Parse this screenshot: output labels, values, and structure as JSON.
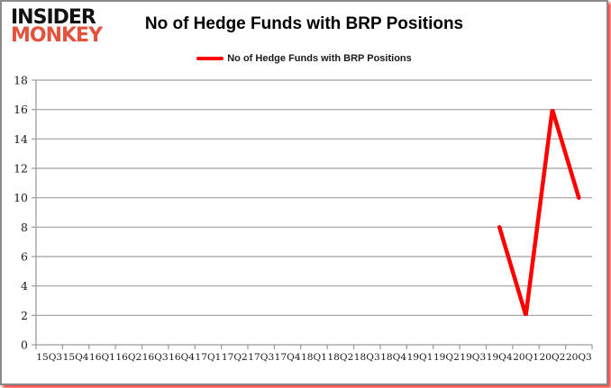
{
  "logo": {
    "line1": "INSIDER",
    "line2": "MONKEY",
    "accent_color": "#e2523c"
  },
  "header": {
    "title": "No of Hedge Funds with BRP Positions"
  },
  "legend": {
    "label": "No of Hedge Funds with BRP Positions",
    "swatch_color": "#ff0000"
  },
  "colors": {
    "line": "#ff0000",
    "grid": "#a0a0a0",
    "axis": "#9a9a9a",
    "tick_text": "#1a1a1a",
    "frame": "#8a8a8a",
    "glow": "#ff1e1e",
    "background": "#ffffff"
  },
  "chart_data": {
    "type": "line",
    "title": "No of Hedge Funds with BRP Positions",
    "xlabel": "",
    "ylabel": "",
    "categories": [
      "15Q3",
      "15Q4",
      "16Q1",
      "16Q2",
      "16Q3",
      "16Q4",
      "17Q1",
      "17Q2",
      "17Q3",
      "17Q4",
      "18Q1",
      "18Q2",
      "18Q3",
      "18Q4",
      "19Q1",
      "19Q2",
      "19Q3",
      "19Q4",
      "20Q1",
      "20Q2",
      "20Q3"
    ],
    "series": [
      {
        "name": "No of Hedge Funds with BRP Positions",
        "color": "#ff0000",
        "values": [
          null,
          null,
          null,
          null,
          null,
          null,
          null,
          null,
          null,
          null,
          null,
          null,
          null,
          null,
          null,
          null,
          null,
          8,
          2,
          16,
          10
        ]
      }
    ],
    "ylim": [
      0,
      18
    ],
    "ytick_step": 2,
    "grid": "horizontal-only",
    "legend_position": "top-center"
  }
}
